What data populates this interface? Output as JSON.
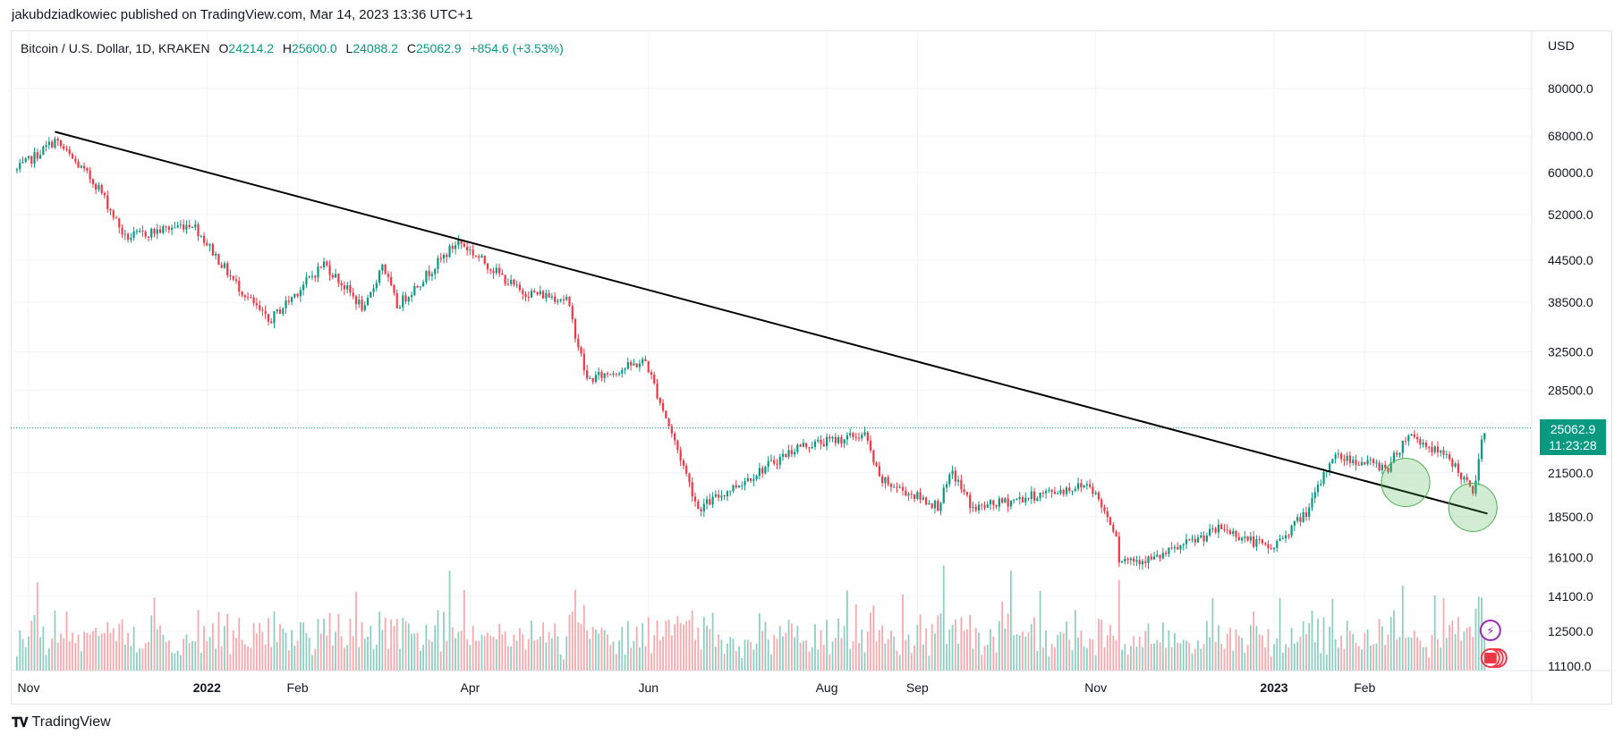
{
  "publisher": "jakubdziadkowiec published on TradingView.com, Mar 14, 2023 13:36 UTC+1",
  "legend": {
    "symbol": "Bitcoin / U.S. Dollar, 1D, KRAKEN",
    "o_label": "O",
    "o": "24214.2",
    "h_label": "H",
    "h": "25600.0",
    "l_label": "L",
    "l": "24088.2",
    "c_label": "C",
    "c": "25062.9",
    "change": "+854.6 (+3.53%)"
  },
  "currency": "USD",
  "last_price": "25062.9",
  "countdown": "11:23:28",
  "footer": "TradingView",
  "colors": {
    "up": "#089981",
    "down": "#f23645",
    "trendline": "#000000",
    "circle": "#4caf50"
  },
  "chart_data": {
    "type": "candlestick",
    "title": "Bitcoin / U.S. Dollar, 1D, KRAKEN",
    "scale": "log",
    "y_ticks": [
      80000.0,
      68000.0,
      60000.0,
      52000.0,
      44500.0,
      38500.0,
      32500.0,
      28500.0,
      21500.0,
      18500.0,
      16100.0,
      14100.0,
      12500.0,
      11100.0
    ],
    "y_tick_labels": [
      "80000.0",
      "68000.0",
      "60000.0",
      "52000.0",
      "44500.0",
      "38500.0",
      "32500.0",
      "28500.0",
      "21500.0",
      "18500.0",
      "16100.0",
      "14100.0",
      "12500.0",
      "11100.0"
    ],
    "x_ticks": [
      {
        "label": "Nov",
        "date": "2021-11-01",
        "bold": false
      },
      {
        "label": "2022",
        "date": "2022-01-01",
        "bold": true
      },
      {
        "label": "Feb",
        "date": "2022-02-01",
        "bold": false
      },
      {
        "label": "Apr",
        "date": "2022-04-01",
        "bold": false
      },
      {
        "label": "Jun",
        "date": "2022-06-01",
        "bold": false
      },
      {
        "label": "Aug",
        "date": "2022-08-01",
        "bold": false
      },
      {
        "label": "Sep",
        "date": "2022-09-01",
        "bold": false
      },
      {
        "label": "Nov",
        "date": "2022-11-01",
        "bold": false
      },
      {
        "label": "2023",
        "date": "2023-01-01",
        "bold": true
      },
      {
        "label": "Feb",
        "date": "2023-02-01",
        "bold": false
      }
    ],
    "price_path": [
      [
        "2021-10-28",
        60500
      ],
      [
        "2021-11-10",
        67000
      ],
      [
        "2021-11-25",
        57000
      ],
      [
        "2021-12-04",
        48000
      ],
      [
        "2021-12-27",
        50500
      ],
      [
        "2022-01-10",
        41500
      ],
      [
        "2022-01-22",
        36000
      ],
      [
        "2022-02-10",
        44000
      ],
      [
        "2022-02-24",
        37500
      ],
      [
        "2022-03-02",
        44000
      ],
      [
        "2022-03-07",
        38000
      ],
      [
        "2022-03-28",
        47500
      ],
      [
        "2022-04-18",
        40000
      ],
      [
        "2022-05-04",
        39000
      ],
      [
        "2022-05-11",
        29500
      ],
      [
        "2022-05-31",
        31500
      ],
      [
        "2022-06-13",
        22000
      ],
      [
        "2022-06-18",
        19000
      ],
      [
        "2022-07-08",
        21500
      ],
      [
        "2022-07-22",
        23500
      ],
      [
        "2022-08-14",
        24500
      ],
      [
        "2022-08-19",
        21000
      ],
      [
        "2022-09-08",
        19200
      ],
      [
        "2022-09-13",
        21500
      ],
      [
        "2022-09-20",
        19000
      ],
      [
        "2022-10-30",
        20700
      ],
      [
        "2022-11-08",
        17500
      ],
      [
        "2022-11-09",
        16000
      ],
      [
        "2022-11-21",
        16000
      ],
      [
        "2022-12-14",
        17800
      ],
      [
        "2022-12-31",
        16550
      ],
      [
        "2023-01-13",
        19000
      ],
      [
        "2023-01-21",
        22800
      ],
      [
        "2023-02-09",
        21900
      ],
      [
        "2023-02-16",
        24600
      ],
      [
        "2023-03-03",
        22300
      ],
      [
        "2023-03-10",
        20000
      ],
      [
        "2023-03-14",
        25062.9
      ]
    ],
    "trendline": {
      "start": [
        "2021-11-10",
        69000
      ],
      "end": [
        "2023-03-15",
        18700
      ]
    },
    "highlight_circles": [
      {
        "date": "2023-02-15",
        "price": 20800
      },
      {
        "date": "2023-03-10",
        "price": 19100
      }
    ],
    "last_price_line": 25062.9,
    "volume": "shown as bars at bottom (unitless)"
  }
}
